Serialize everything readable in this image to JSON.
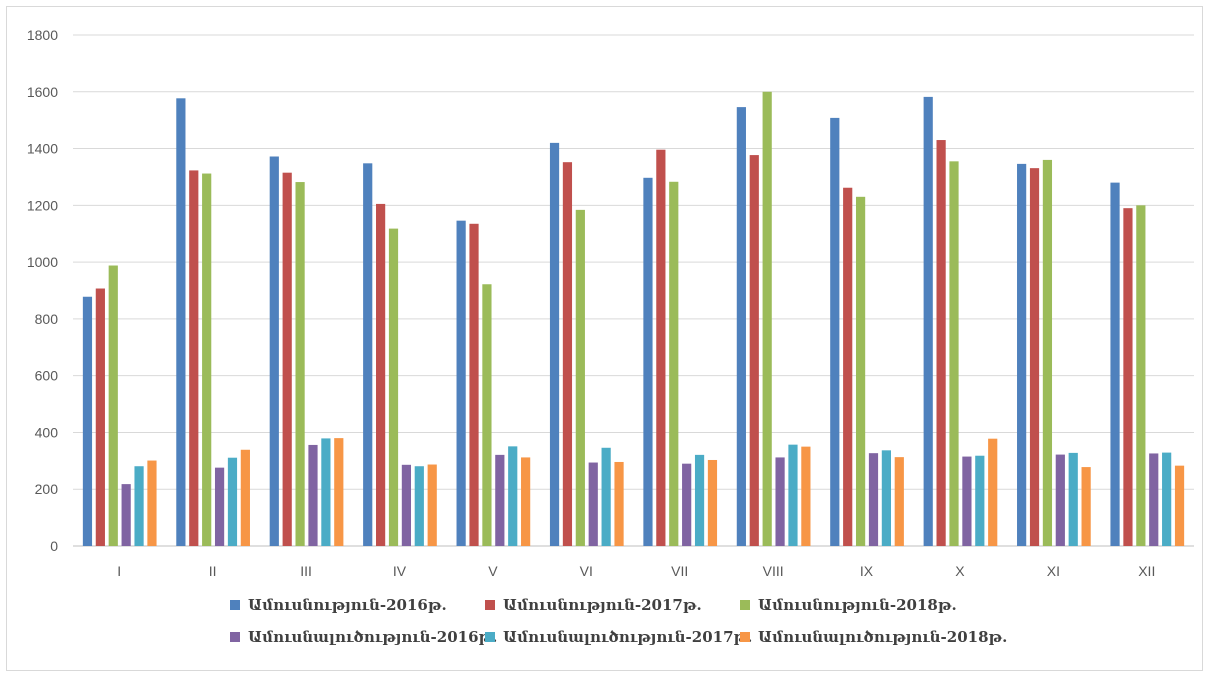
{
  "chart_data": {
    "type": "bar",
    "title": "",
    "xlabel": "",
    "ylabel": "",
    "ylim": [
      0,
      1800
    ],
    "yticks": [
      0,
      200,
      400,
      600,
      800,
      1000,
      1200,
      1400,
      1600,
      1800
    ],
    "grid": true,
    "legend_position": "bottom",
    "categories": [
      "I",
      "II",
      "III",
      "IV",
      "V",
      "VI",
      "VII",
      "VIII",
      "IX",
      "X",
      "XI",
      "XII"
    ],
    "series": [
      {
        "name": "Ամուսնություն-2016թ.",
        "color": "#4f81bd",
        "values": [
          878,
          1577,
          1372,
          1348,
          1146,
          1420,
          1297,
          1546,
          1508,
          1582,
          1346,
          1280
        ]
      },
      {
        "name": "Ամուսնություն-2017թ.",
        "color": "#c0504d",
        "values": [
          907,
          1323,
          1315,
          1205,
          1135,
          1352,
          1396,
          1377,
          1262,
          1430,
          1331,
          1190
        ]
      },
      {
        "name": "Ամուսնություն-2018թ.",
        "color": "#9bbb59",
        "values": [
          988,
          1312,
          1282,
          1118,
          922,
          1184,
          1283,
          1600,
          1230,
          1355,
          1360,
          1200
        ]
      },
      {
        "name": "Ամուսնալուծություն-2016թ.",
        "color": "#8064a2",
        "values": [
          218,
          276,
          356,
          286,
          321,
          294,
          290,
          312,
          327,
          315,
          322,
          326
        ]
      },
      {
        "name": "Ամուսնալուծություն-2017թ.",
        "color": "#4bacc6",
        "values": [
          281,
          311,
          379,
          281,
          351,
          346,
          321,
          357,
          337,
          318,
          328,
          329
        ]
      },
      {
        "name": "Ամուսնալուծություն-2018թ.",
        "color": "#f79646",
        "values": [
          301,
          339,
          380,
          287,
          312,
          296,
          303,
          350,
          313,
          378,
          278,
          283
        ]
      }
    ]
  }
}
